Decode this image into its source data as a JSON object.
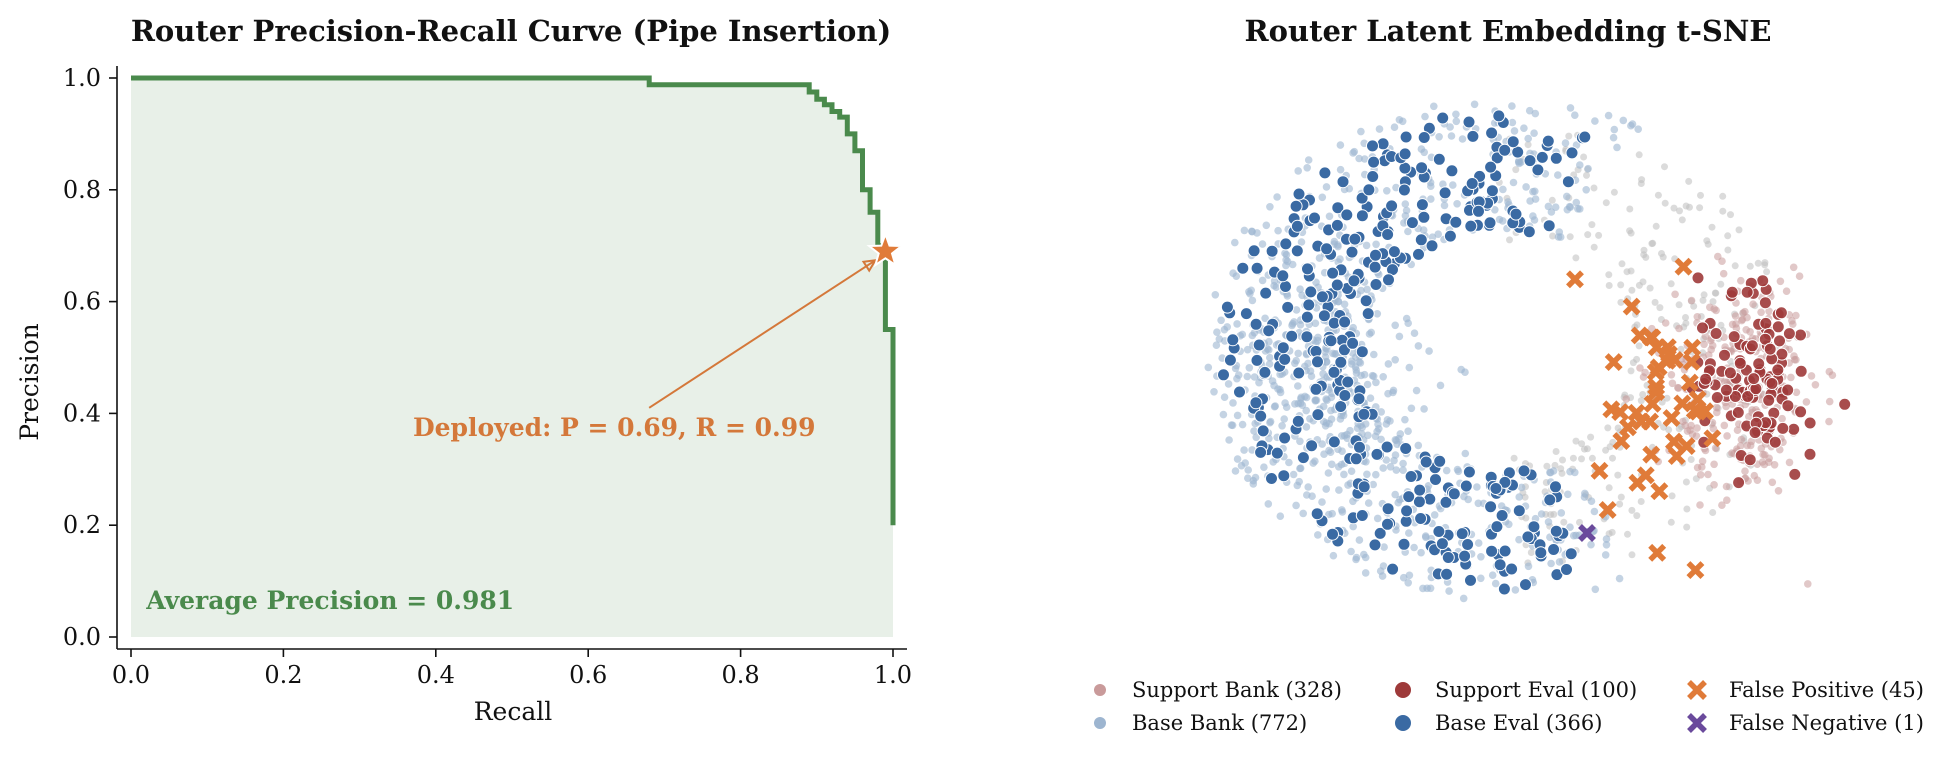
{
  "chart_data": [
    {
      "type": "line",
      "title": "Router Precision-Recall Curve (Pipe Insertion)",
      "xlabel": "Recall",
      "ylabel": "Precision",
      "xlim": [
        0.0,
        1.0
      ],
      "ylim": [
        0.0,
        1.0
      ],
      "xticks": [
        "0.0",
        "0.2",
        "0.4",
        "0.6",
        "0.8",
        "1.0"
      ],
      "yticks": [
        "0.0",
        "0.2",
        "0.4",
        "0.6",
        "0.8",
        "1.0"
      ],
      "grid": false,
      "series": [
        {
          "color": "#4a8a4c",
          "fill": true,
          "x": [
            0.0,
            0.68,
            0.68,
            0.89,
            0.89,
            0.9,
            0.9,
            0.91,
            0.91,
            0.92,
            0.92,
            0.93,
            0.93,
            0.94,
            0.94,
            0.95,
            0.95,
            0.96,
            0.96,
            0.97,
            0.97,
            0.98,
            0.98,
            0.99,
            0.99,
            1.0,
            1.0
          ],
          "y": [
            1.0,
            1.0,
            0.988,
            0.988,
            0.975,
            0.975,
            0.962,
            0.962,
            0.952,
            0.952,
            0.94,
            0.94,
            0.93,
            0.93,
            0.9,
            0.9,
            0.87,
            0.87,
            0.8,
            0.8,
            0.76,
            0.76,
            0.7,
            0.7,
            0.55,
            0.55,
            0.2
          ]
        }
      ],
      "marker": {
        "x": 0.99,
        "y": 0.69,
        "color": "#e07b39",
        "shape": "star"
      },
      "annotations": [
        {
          "text": "Deployed: P = 0.69, R = 0.99",
          "x": 0.37,
          "y": 0.36,
          "color": "#d4783a"
        },
        {
          "text": "Average Precision = 0.981",
          "x": 0.02,
          "y": 0.05,
          "color": "#4a8a4c"
        }
      ]
    },
    {
      "type": "scatter",
      "title": "Router Latent Embedding t-SNE",
      "axes_visible": false,
      "legend_position": "bottom",
      "legend": [
        {
          "label": "Support Bank (328)",
          "color": "#c99a9a",
          "shape": "dot-small"
        },
        {
          "label": "Base Bank (772)",
          "color": "#9db5d0",
          "shape": "dot-small"
        },
        {
          "label": "Support Eval (100)",
          "color": "#9e3a3a",
          "shape": "dot"
        },
        {
          "label": "Base Eval (366)",
          "color": "#3a6aa3",
          "shape": "dot"
        },
        {
          "label": "False Positive (45)",
          "color": "#e07b39",
          "shape": "x"
        },
        {
          "label": "False Negative (1)",
          "color": "#6a4a9c",
          "shape": "x"
        }
      ]
    }
  ]
}
